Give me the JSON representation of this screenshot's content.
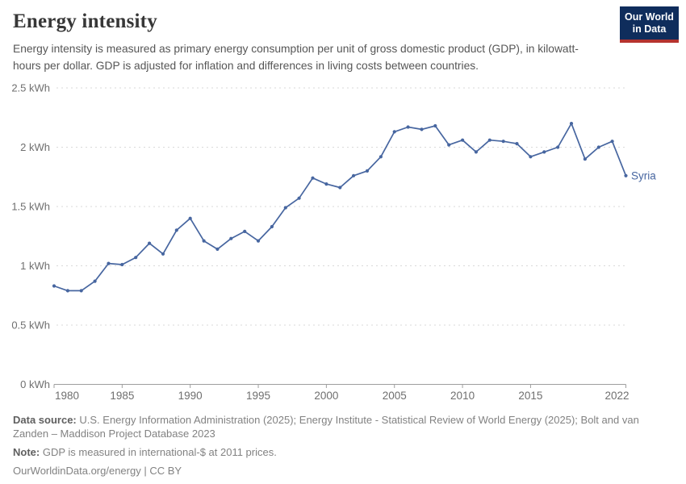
{
  "header": {
    "title": "Energy intensity",
    "subtitle": "Energy intensity is measured as primary energy consumption per unit of gross domestic product (GDP), in kilowatt-hours per dollar. GDP is adjusted for inflation and differences in living costs between countries.",
    "logo": {
      "line1": "Our World",
      "line2": "in Data"
    }
  },
  "colors": {
    "line": "#4766a0",
    "grid": "#d9d9d9",
    "axis": "#9e9e9e",
    "axis_text": "#6f6f6f",
    "logo_bg": "#0f2d5c",
    "logo_stripe": "#b5332f"
  },
  "chart_data": {
    "type": "line",
    "title": "Energy intensity",
    "ylabel": "",
    "xlabel": "",
    "grid": true,
    "ylim": [
      0,
      2.5
    ],
    "xlim": [
      1980,
      2022
    ],
    "yticks": [
      {
        "value": 0,
        "label": "0 kWh"
      },
      {
        "value": 0.5,
        "label": "0.5 kWh"
      },
      {
        "value": 1,
        "label": "1 kWh"
      },
      {
        "value": 1.5,
        "label": "1.5 kWh"
      },
      {
        "value": 2,
        "label": "2 kWh"
      },
      {
        "value": 2.5,
        "label": "2.5 kWh"
      }
    ],
    "xticks": [
      1980,
      1985,
      1990,
      1995,
      2000,
      2005,
      2010,
      2015,
      2022
    ],
    "series": [
      {
        "name": "Syria",
        "color": "#4766a0",
        "years": [
          1980,
          1981,
          1982,
          1983,
          1984,
          1985,
          1986,
          1987,
          1988,
          1989,
          1990,
          1991,
          1992,
          1993,
          1994,
          1995,
          1996,
          1997,
          1998,
          1999,
          2000,
          2001,
          2002,
          2003,
          2004,
          2005,
          2006,
          2007,
          2008,
          2009,
          2010,
          2011,
          2012,
          2013,
          2014,
          2015,
          2016,
          2017,
          2018,
          2019,
          2020,
          2021,
          2022
        ],
        "values": [
          0.83,
          0.79,
          0.79,
          0.87,
          1.02,
          1.01,
          1.07,
          1.19,
          1.1,
          1.3,
          1.4,
          1.21,
          1.14,
          1.23,
          1.29,
          1.21,
          1.33,
          1.49,
          1.57,
          1.74,
          1.69,
          1.66,
          1.76,
          1.8,
          1.92,
          2.13,
          2.17,
          2.15,
          2.18,
          2.02,
          2.06,
          1.96,
          2.06,
          2.05,
          2.03,
          1.92,
          1.96,
          2.0,
          2.2,
          1.9,
          2.0,
          2.05,
          1.76
        ]
      }
    ],
    "end_label": "Syria",
    "legend_position": "end-of-line"
  },
  "footer": {
    "datasource_label": "Data source:",
    "datasource_text": "U.S. Energy Information Administration (2025); Energy Institute - Statistical Review of World Energy (2025); Bolt and van Zanden – Maddison Project Database 2023",
    "note_label": "Note:",
    "note_text": "GDP is measured in international-$ at 2011 prices.",
    "link": "OurWorldinData.org/energy | CC BY"
  }
}
